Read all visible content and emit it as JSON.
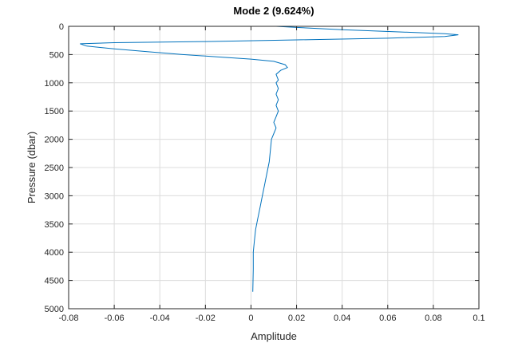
{
  "chart_data": {
    "type": "line",
    "title": "Mode 2 (9.624%)",
    "xlabel": "Amplitude",
    "ylabel": "Pressure (dbar)",
    "xlim": [
      -0.08,
      0.1
    ],
    "ylim": [
      0,
      5000
    ],
    "y_reversed": true,
    "grid": true,
    "series_color": "#0072BD",
    "x_ticks": [
      -0.08,
      -0.06,
      -0.04,
      -0.02,
      0,
      0.02,
      0.04,
      0.06,
      0.08,
      0.1
    ],
    "x_tick_labels": [
      "-0.08",
      "-0.06",
      "-0.04",
      "-0.02",
      "0",
      "0.02",
      "0.04",
      "0.06",
      "0.08",
      "0.1"
    ],
    "y_ticks": [
      0,
      500,
      1000,
      1500,
      2000,
      2500,
      3000,
      3500,
      4000,
      4500,
      5000
    ],
    "y_tick_labels": [
      "0",
      "500",
      "1000",
      "1500",
      "2000",
      "2500",
      "3000",
      "3500",
      "4000",
      "4500",
      "5000"
    ],
    "series": [
      {
        "x": [
          0.011,
          0.02,
          0.04,
          0.066,
          0.085,
          0.091,
          0.085,
          0.06,
          0.02,
          -0.02,
          -0.06,
          -0.075,
          -0.072,
          -0.06,
          -0.045,
          -0.03,
          -0.015,
          0.0,
          0.01,
          0.015,
          0.016,
          0.013,
          0.011,
          0.012,
          0.011,
          0.012,
          0.011,
          0.012,
          0.011,
          0.012,
          0.011,
          0.01,
          0.011,
          0.01,
          0.009,
          0.0085,
          0.008,
          0.007,
          0.006,
          0.005,
          0.004,
          0.003,
          0.002,
          0.0015,
          0.001,
          0.001,
          0.0008
        ],
        "y": [
          0,
          20,
          60,
          100,
          130,
          150,
          180,
          210,
          240,
          270,
          290,
          310,
          350,
          400,
          450,
          500,
          540,
          580,
          620,
          680,
          730,
          780,
          850,
          950,
          1000,
          1100,
          1200,
          1300,
          1400,
          1500,
          1600,
          1700,
          1800,
          1900,
          2000,
          2200,
          2400,
          2600,
          2800,
          3000,
          3200,
          3400,
          3600,
          3800,
          4000,
          4300,
          4700
        ]
      }
    ]
  }
}
